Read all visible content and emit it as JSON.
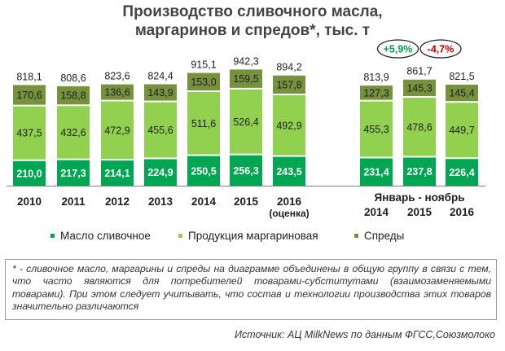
{
  "title_line1": "Производство сливочного масла,",
  "title_line2": "маргаринов и спредов*, тыс. т",
  "colors": {
    "butter": "#00a651",
    "margarine": "#92d050",
    "spreads": "#76923c"
  },
  "legend": {
    "butter": "Масло сливочное",
    "margarine": "Продукция маргариновая",
    "spreads": "Спреды"
  },
  "chart_data": {
    "type": "bar",
    "stacked": true,
    "title": "Производство сливочного масла, маргаринов и спредов*, тыс. т",
    "categories": [
      "2010",
      "2011",
      "2012",
      "2013",
      "2014",
      "2015",
      "2016 (оценка)",
      "2014",
      "2015",
      "2016"
    ],
    "category_sublabels": [
      "",
      "",
      "",
      "",
      "",
      "",
      "(оценка)",
      "",
      "",
      ""
    ],
    "category_group": {
      "label": "Январь - ноябрь",
      "categories": [
        "2014",
        "2015",
        "2016"
      ]
    },
    "series": [
      {
        "name": "Масло сливочное",
        "values": [
          210.0,
          217.3,
          214.1,
          224.9,
          250.5,
          256.3,
          243.5,
          231.4,
          237.8,
          226.4
        ],
        "labels": [
          "210,0",
          "217,3",
          "214,1",
          "224,9",
          "250,5",
          "256,3",
          "243,5",
          "231,4",
          "237,8",
          "226,4"
        ]
      },
      {
        "name": "Продукция маргариновая",
        "values": [
          437.5,
          432.6,
          472.9,
          455.6,
          511.6,
          526.4,
          492.9,
          455.3,
          478.6,
          449.7
        ],
        "labels": [
          "437,5",
          "432,6",
          "472,9",
          "455,6",
          "511,6",
          "526,4",
          "492,9",
          "455,3",
          "478,6",
          "449,7"
        ]
      },
      {
        "name": "Спреды",
        "values": [
          170.6,
          158.8,
          136.6,
          143.9,
          153.0,
          159.5,
          157.8,
          127.3,
          145.3,
          145.4
        ],
        "labels": [
          "170,6",
          "158,8",
          "136,6",
          "143,9",
          "153,0",
          "159,5",
          "157,8",
          "127,3",
          "145,3",
          "145,4"
        ]
      }
    ],
    "totals": [
      818.1,
      808.6,
      823.6,
      824.4,
      915.1,
      942.3,
      894.2,
      813.9,
      861.7,
      821.5
    ],
    "total_labels": [
      "818,1",
      "808,6",
      "823,6",
      "824,4",
      "915,1",
      "942,3",
      "894,2",
      "813,9",
      "861,7",
      "821,5"
    ],
    "annotations": [
      {
        "text": "+5,9%",
        "color": "#00a651",
        "between": [
          7,
          8
        ]
      },
      {
        "text": "-4,7%",
        "color": "#d00000",
        "between": [
          8,
          9
        ]
      }
    ],
    "legend_position": "bottom",
    "grid": false,
    "ylim": [
      0,
      950
    ]
  },
  "footnote": "* - сливочное масло, маргарины и спреды на диаграмме объединены в общую группу в связи с тем, что часто являются для потребителей товарами-субститутами (взаимозаменяемыми товарами). При этом следует учитывать, что состав и технологии производства этих товаров значительно различаются",
  "source": "Источник: АЦ MilkNews по данным ФГСС,Союзмолоко"
}
